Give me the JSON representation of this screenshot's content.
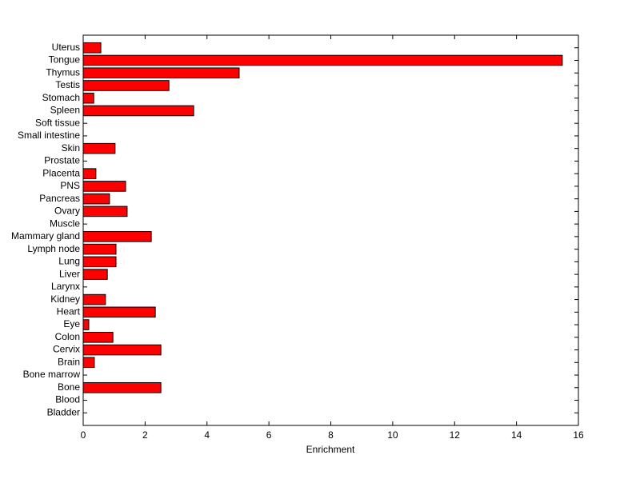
{
  "chart_data": {
    "type": "barh",
    "x_label": "Enrichment",
    "categories": [
      "Bladder",
      "Blood",
      "Bone",
      "Bone marrow",
      "Brain",
      "Cervix",
      "Colon",
      "Eye",
      "Heart",
      "Kidney",
      "Larynx",
      "Liver",
      "Lung",
      "Lymph node",
      "Mammary gland",
      "Muscle",
      "Ovary",
      "Pancreas",
      "PNS",
      "Placenta",
      "Prostate",
      "Skin",
      "Small intestine",
      "Soft tissue",
      "Spleen",
      "Stomach",
      "Testis",
      "Thymus",
      "Tongue",
      "Uterus"
    ],
    "values": [
      0,
      0,
      2.51,
      0,
      0.36,
      2.51,
      0.96,
      0.18,
      2.33,
      0.72,
      0,
      0.78,
      1.06,
      1.06,
      2.2,
      0,
      1.42,
      0.85,
      1.37,
      0.41,
      0,
      1.03,
      0,
      0,
      3.57,
      0.34,
      2.77,
      5.04,
      15.48,
      0.57
    ],
    "color": "#ff0000",
    "xlim": [
      0,
      16
    ],
    "xticks": [
      0,
      2,
      4,
      6,
      8,
      10,
      12,
      14,
      16
    ]
  }
}
